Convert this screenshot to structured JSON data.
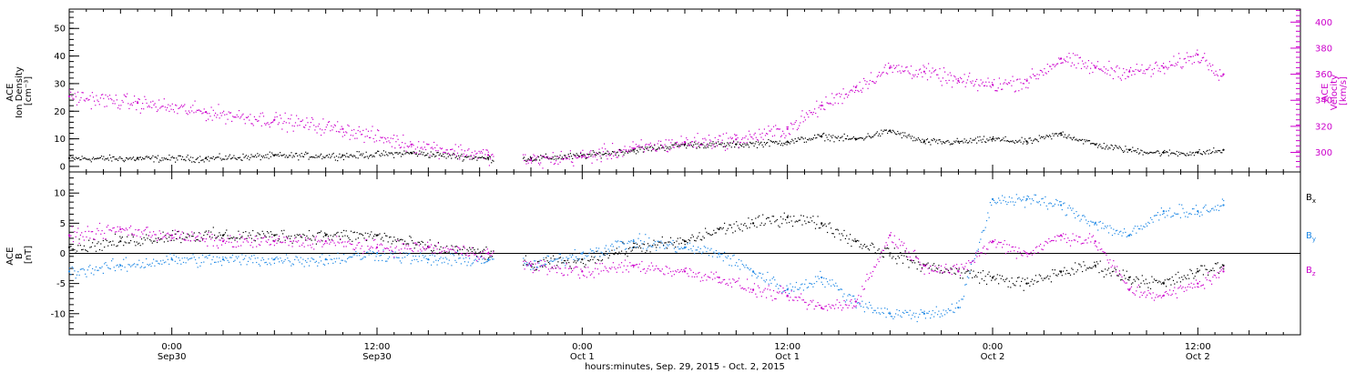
{
  "xaxis": {
    "title": "hours:minutes, Sep. 29, 2015 - Oct. 2, 2015",
    "ticks": [
      {
        "h": 6,
        "top": "0:00",
        "bottom": "Sep30"
      },
      {
        "h": 18,
        "top": "12:00",
        "bottom": "Sep30"
      },
      {
        "h": 30,
        "top": "0:00",
        "bottom": "Oct 1"
      },
      {
        "h": 42,
        "top": "12:00",
        "bottom": "Oct 1"
      },
      {
        "h": 54,
        "top": "0:00",
        "bottom": "Oct 2"
      },
      {
        "h": 66,
        "top": "12:00",
        "bottom": "Oct 2"
      }
    ]
  },
  "colors": {
    "axis": "#000000",
    "density": "#000000",
    "velocity": "#cc00cc",
    "bx": "#000000",
    "by": "#1e88e5",
    "bz": "#cc00cc"
  },
  "chart_data": [
    {
      "type": "scatter",
      "panel": "top",
      "xlim": [
        0,
        72
      ],
      "x_units": "hours since 2015-09-29 18:00 UT",
      "left_axis": {
        "label_lines": [
          "ACE",
          "Ion Density",
          "[cm⁻³]"
        ],
        "ylim": [
          -2,
          57
        ],
        "ticks": [
          0,
          10,
          20,
          30,
          40,
          50
        ]
      },
      "right_axis": {
        "label_lines": [
          "ACE",
          "Velocity",
          "[km/s]"
        ],
        "ylim": [
          285,
          410
        ],
        "ticks": [
          300,
          320,
          340,
          360,
          380,
          400
        ]
      },
      "gaps_hours": [
        [
          24.8,
          26.5
        ]
      ],
      "series": [
        {
          "key": "density",
          "axis": "left",
          "x": [
            0,
            4,
            8,
            12,
            16,
            20,
            24.5,
            27,
            30,
            33,
            36,
            39,
            42,
            44,
            46,
            48,
            50,
            52,
            54,
            56,
            58,
            60,
            62,
            64,
            66,
            67.5
          ],
          "y": [
            3,
            3,
            3,
            4,
            4,
            5,
            3,
            3,
            4,
            6,
            8,
            8,
            9,
            11,
            10,
            13,
            9,
            9,
            10,
            9,
            12,
            8,
            6,
            5,
            5,
            6
          ]
        },
        {
          "key": "velocity",
          "axis": "right",
          "x": [
            0,
            4,
            8,
            12,
            16,
            20,
            24.5,
            27,
            30,
            33,
            36,
            39,
            42,
            44,
            46,
            48,
            50,
            52,
            54,
            56,
            58,
            60,
            62,
            64,
            66,
            67.5
          ],
          "y": [
            343,
            338,
            331,
            325,
            318,
            306,
            298,
            294,
            297,
            303,
            308,
            310,
            318,
            336,
            350,
            365,
            362,
            355,
            352,
            355,
            372,
            365,
            362,
            365,
            375,
            360
          ]
        }
      ]
    },
    {
      "type": "scatter",
      "panel": "bottom",
      "xlim": [
        0,
        72
      ],
      "x_units": "hours since 2015-09-29 18:00 UT",
      "left_axis": {
        "label_lines": [
          "ACE",
          "B",
          "[nT]"
        ],
        "ylim": [
          -13.5,
          13.5
        ],
        "ticks": [
          -10,
          -5,
          0,
          5,
          10
        ]
      },
      "zero_line": true,
      "legend": {
        "placement": "right",
        "entries": [
          {
            "key": "bx",
            "label": "B",
            "sub": "x"
          },
          {
            "key": "by",
            "label": "B",
            "sub": "y"
          },
          {
            "key": "bz",
            "label": "B",
            "sub": "z"
          }
        ]
      },
      "gaps_hours": [
        [
          24.8,
          26.5
        ]
      ],
      "series": [
        {
          "key": "bx",
          "x": [
            0,
            3,
            6,
            9,
            12,
            15,
            18,
            21,
            24.5,
            27,
            30,
            33,
            36,
            38,
            40,
            42,
            44,
            46,
            48,
            50,
            52,
            54,
            56,
            58,
            60,
            62,
            64,
            66,
            67.5
          ],
          "y": [
            1,
            2,
            3,
            3,
            3,
            3,
            3,
            1,
            0,
            -2,
            -1,
            1,
            2,
            4,
            5,
            6,
            5,
            2,
            0,
            -2,
            -3,
            -4,
            -5,
            -3,
            -2,
            -4,
            -5,
            -3,
            -2
          ]
        },
        {
          "key": "by",
          "x": [
            0,
            3,
            6,
            9,
            12,
            15,
            18,
            21,
            24.5,
            27,
            30,
            33,
            36,
            38,
            40,
            42,
            44,
            46,
            48,
            50,
            52,
            54,
            56,
            58,
            60,
            62,
            64,
            66,
            67.5
          ],
          "y": [
            -3,
            -2,
            -1,
            -1,
            -1,
            -1,
            0,
            -1,
            -1,
            -2,
            0,
            2,
            1,
            0,
            -3,
            -6,
            -4,
            -8,
            -10,
            -10,
            -9,
            9,
            9,
            8,
            5,
            3,
            7,
            7,
            8
          ]
        },
        {
          "key": "bz",
          "x": [
            0,
            3,
            6,
            9,
            12,
            15,
            18,
            21,
            24.5,
            27,
            30,
            33,
            36,
            38,
            40,
            42,
            44,
            46,
            48,
            50,
            52,
            54,
            56,
            58,
            60,
            62,
            64,
            66,
            67.5
          ],
          "y": [
            3,
            4,
            3,
            2,
            2,
            2,
            1,
            1,
            0,
            -2,
            -3,
            -2,
            -3,
            -4,
            -6,
            -7,
            -9,
            -8,
            3,
            -2,
            -3,
            2,
            0,
            3,
            2,
            -6,
            -7,
            -5,
            -3
          ]
        }
      ]
    }
  ]
}
